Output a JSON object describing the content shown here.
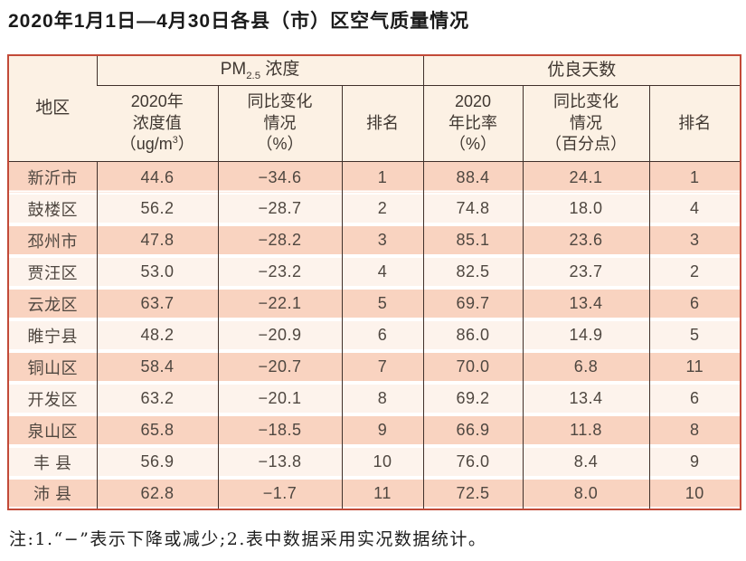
{
  "title": "2020年1月1日—4月30日各县（市）区空气质量情况",
  "table": {
    "corner_label": "地区",
    "group_pm": {
      "prefix": "PM",
      "sub": "2.5",
      "suffix": " 浓度"
    },
    "group_good": "优良天数",
    "sub_headers": {
      "pm_value": {
        "l1": "2020年",
        "l2": "浓度值",
        "unit_pre": "（ug/m",
        "unit_sup": "3",
        "unit_post": "）"
      },
      "pm_change": {
        "l1": "同比变化",
        "l2": "情况",
        "l3": "（%）"
      },
      "pm_rank": "排名",
      "good_rate": {
        "l1": "2020",
        "l2": "年比率",
        "l3": "（%）"
      },
      "good_change": {
        "l1": "同比变化",
        "l2": "情况",
        "l3": "（百分点）"
      },
      "good_rank": "排名"
    },
    "rows": [
      [
        "新沂市",
        "44.6",
        "−34.6",
        "1",
        "88.4",
        "24.1",
        "1"
      ],
      [
        "鼓楼区",
        "56.2",
        "−28.7",
        "2",
        "74.8",
        "18.0",
        "4"
      ],
      [
        "邳州市",
        "47.8",
        "−28.2",
        "3",
        "85.1",
        "23.6",
        "3"
      ],
      [
        "贾汪区",
        "53.0",
        "−23.2",
        "4",
        "82.5",
        "23.7",
        "2"
      ],
      [
        "云龙区",
        "63.7",
        "−22.1",
        "5",
        "69.7",
        "13.4",
        "6"
      ],
      [
        "睢宁县",
        "48.2",
        "−20.9",
        "6",
        "86.0",
        "14.9",
        "5"
      ],
      [
        "铜山区",
        "58.4",
        "−20.7",
        "7",
        "70.0",
        "6.8",
        "11"
      ],
      [
        "开发区",
        "63.2",
        "−20.1",
        "8",
        "69.2",
        "13.4",
        "6"
      ],
      [
        "泉山区",
        "65.8",
        "−18.5",
        "9",
        "66.9",
        "11.8",
        "8"
      ],
      [
        "丰 县",
        "56.9",
        "−13.8",
        "10",
        "76.0",
        "8.4",
        "9"
      ],
      [
        "沛 县",
        "62.8",
        "−1.7",
        "11",
        "72.5",
        "8.0",
        "10"
      ]
    ]
  },
  "footnote": "注:1.“−”表示下降或减少;2.表中数据采用实况数据统计。",
  "colors": {
    "stripe_dark": "#f9d3c0",
    "stripe_light": "#fdf3ec",
    "header_bg": "#fcf1e4",
    "outer_border": "#c24a38",
    "grid_line": "#40302a"
  }
}
